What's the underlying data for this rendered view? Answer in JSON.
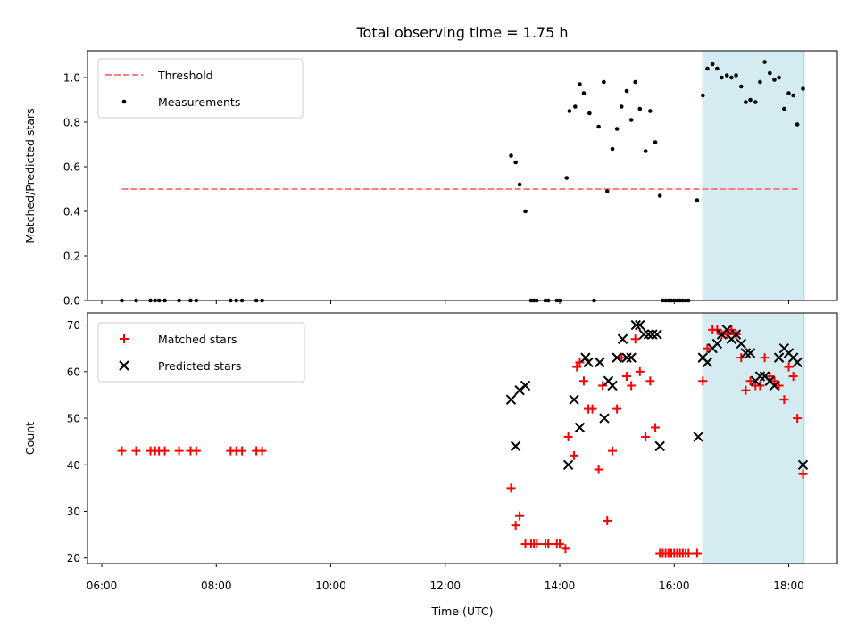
{
  "chart_data": {
    "type": "scatter",
    "title": "Total observing time = 1.75 h",
    "xlabel": "Time (UTC)",
    "xlim": [
      5.75,
      18.85
    ],
    "xticks": [
      6,
      8,
      10,
      12,
      14,
      16,
      18
    ],
    "xtick_labels": [
      "06:00",
      "08:00",
      "10:00",
      "12:00",
      "14:00",
      "16:00",
      "18:00"
    ],
    "highlight_span": {
      "x_start": 16.5,
      "x_end": 18.27,
      "color": "#d3ebf1"
    },
    "panels": [
      {
        "ylabel": "Matched/Predicted stars",
        "ylim": [
          0,
          1.12
        ],
        "yticks": [
          0.0,
          0.2,
          0.4,
          0.6,
          0.8,
          1.0
        ],
        "ytick_labels": [
          "0.0",
          "0.2",
          "0.4",
          "0.6",
          "0.8",
          "1.0"
        ],
        "legend": {
          "position": "upper-left"
        },
        "threshold": {
          "name": "Threshold",
          "y": 0.5,
          "x_start": 6.35,
          "x_end": 18.2,
          "color": "#ff7f7f"
        },
        "series": [
          {
            "name": "Measurements",
            "marker": "dot",
            "color": "#000000",
            "x": [
              6.35,
              6.6,
              6.85,
              6.93,
              7.0,
              7.1,
              7.35,
              7.55,
              7.65,
              8.25,
              8.35,
              8.45,
              8.7,
              8.8,
              13.15,
              13.23,
              13.3,
              13.4,
              13.5,
              13.55,
              13.6,
              13.75,
              13.8,
              13.95,
              14.0,
              14.12,
              14.17,
              14.27,
              14.35,
              14.42,
              14.52,
              14.6,
              14.68,
              14.77,
              14.83,
              14.92,
              15.0,
              15.08,
              15.17,
              15.25,
              15.32,
              15.4,
              15.5,
              15.58,
              15.67,
              15.75,
              15.8,
              15.85,
              15.9,
              15.95,
              16.0,
              16.05,
              16.1,
              16.15,
              16.2,
              16.25,
              16.4,
              16.5,
              16.58,
              16.67,
              16.75,
              16.83,
              16.92,
              17.0,
              17.08,
              17.17,
              17.25,
              17.33,
              17.42,
              17.5,
              17.58,
              17.67,
              17.75,
              17.83,
              17.92,
              18.0,
              18.08,
              18.15,
              18.25
            ],
            "y": [
              0,
              0,
              0,
              0,
              0,
              0,
              0,
              0,
              0,
              0,
              0,
              0,
              0,
              0,
              0.65,
              0.62,
              0.52,
              0.4,
              0,
              0,
              0,
              0,
              0,
              0,
              0,
              0.55,
              0.85,
              0.87,
              0.97,
              0.93,
              0.84,
              0,
              0.78,
              0.98,
              0.49,
              0.68,
              0.77,
              0.87,
              0.94,
              0.81,
              0.98,
              0.86,
              0.67,
              0.85,
              0.71,
              0.47,
              0,
              0,
              0,
              0,
              0,
              0,
              0,
              0,
              0,
              0,
              0.45,
              0.92,
              1.04,
              1.06,
              1.04,
              1.0,
              1.01,
              1.0,
              1.01,
              0.96,
              0.89,
              0.9,
              0.89,
              0.98,
              1.07,
              1.02,
              0.99,
              1.0,
              0.86,
              0.93,
              0.92,
              0.79,
              0.95
            ]
          }
        ]
      },
      {
        "ylabel": "Count",
        "ylim": [
          18.8,
          72.6
        ],
        "yticks": [
          20,
          30,
          40,
          50,
          60,
          70
        ],
        "ytick_labels": [
          "20",
          "30",
          "40",
          "50",
          "60",
          "70"
        ],
        "legend": {
          "position": "upper-left"
        },
        "series": [
          {
            "name": "Matched stars",
            "marker": "plus",
            "color": "#ff0000",
            "x": [
              6.35,
              6.6,
              6.85,
              6.93,
              7.0,
              7.1,
              7.35,
              7.55,
              7.65,
              8.25,
              8.35,
              8.45,
              8.7,
              8.8,
              13.15,
              13.23,
              13.3,
              13.4,
              13.5,
              13.55,
              13.6,
              13.75,
              13.8,
              13.95,
              14.0,
              14.1,
              14.15,
              14.25,
              14.3,
              14.35,
              14.42,
              14.5,
              14.57,
              14.68,
              14.75,
              14.83,
              14.92,
              15.0,
              15.08,
              15.17,
              15.25,
              15.32,
              15.4,
              15.5,
              15.58,
              15.67,
              15.75,
              15.8,
              15.85,
              15.9,
              15.95,
              16.0,
              16.05,
              16.1,
              16.15,
              16.2,
              16.25,
              16.4,
              16.5,
              16.58,
              16.67,
              16.75,
              16.83,
              16.92,
              17.0,
              17.08,
              17.17,
              17.25,
              17.33,
              17.42,
              17.5,
              17.58,
              17.67,
              17.75,
              17.83,
              17.92,
              18.0,
              18.08,
              18.15,
              18.25
            ],
            "y": [
              43,
              43,
              43,
              43,
              43,
              43,
              43,
              43,
              43,
              43,
              43,
              43,
              43,
              43,
              35,
              27,
              29,
              23,
              23,
              23,
              23,
              23,
              23,
              23,
              23,
              22,
              46,
              42,
              61,
              62,
              58,
              52,
              52,
              39,
              57,
              28,
              43,
              52,
              63,
              59,
              57,
              67,
              60,
              46,
              58,
              48,
              21,
              21,
              21,
              21,
              21,
              21,
              21,
              21,
              21,
              21,
              21,
              21,
              58,
              65,
              69,
              69,
              68,
              68,
              69,
              68,
              63,
              56,
              58,
              57,
              57,
              63,
              59,
              58,
              57,
              54,
              61,
              59,
              50,
              38
            ]
          },
          {
            "name": "Predicted stars",
            "marker": "x",
            "color": "#000000",
            "x": [
              13.15,
              13.23,
              13.3,
              13.4,
              14.15,
              14.25,
              14.35,
              14.45,
              14.5,
              14.7,
              14.78,
              14.85,
              14.92,
              15.0,
              15.1,
              15.17,
              15.25,
              15.33,
              15.4,
              15.47,
              15.55,
              15.62,
              15.7,
              15.75,
              16.42,
              16.5,
              16.58,
              16.67,
              16.75,
              16.83,
              16.92,
              17.0,
              17.08,
              17.17,
              17.25,
              17.33,
              17.42,
              17.5,
              17.58,
              17.67,
              17.75,
              17.83,
              17.92,
              18.0,
              18.08,
              18.15,
              18.25
            ],
            "y": [
              54,
              44,
              56,
              57,
              40,
              54,
              48,
              63,
              62,
              62,
              50,
              58,
              57,
              63,
              67,
              63,
              63,
              70,
              70,
              68,
              68,
              68,
              68,
              44,
              46,
              63,
              62,
              65,
              66,
              68,
              69,
              67,
              68,
              66,
              64,
              64,
              58,
              59,
              59,
              58,
              57,
              63,
              65,
              64,
              63,
              62,
              40
            ]
          }
        ]
      }
    ]
  }
}
